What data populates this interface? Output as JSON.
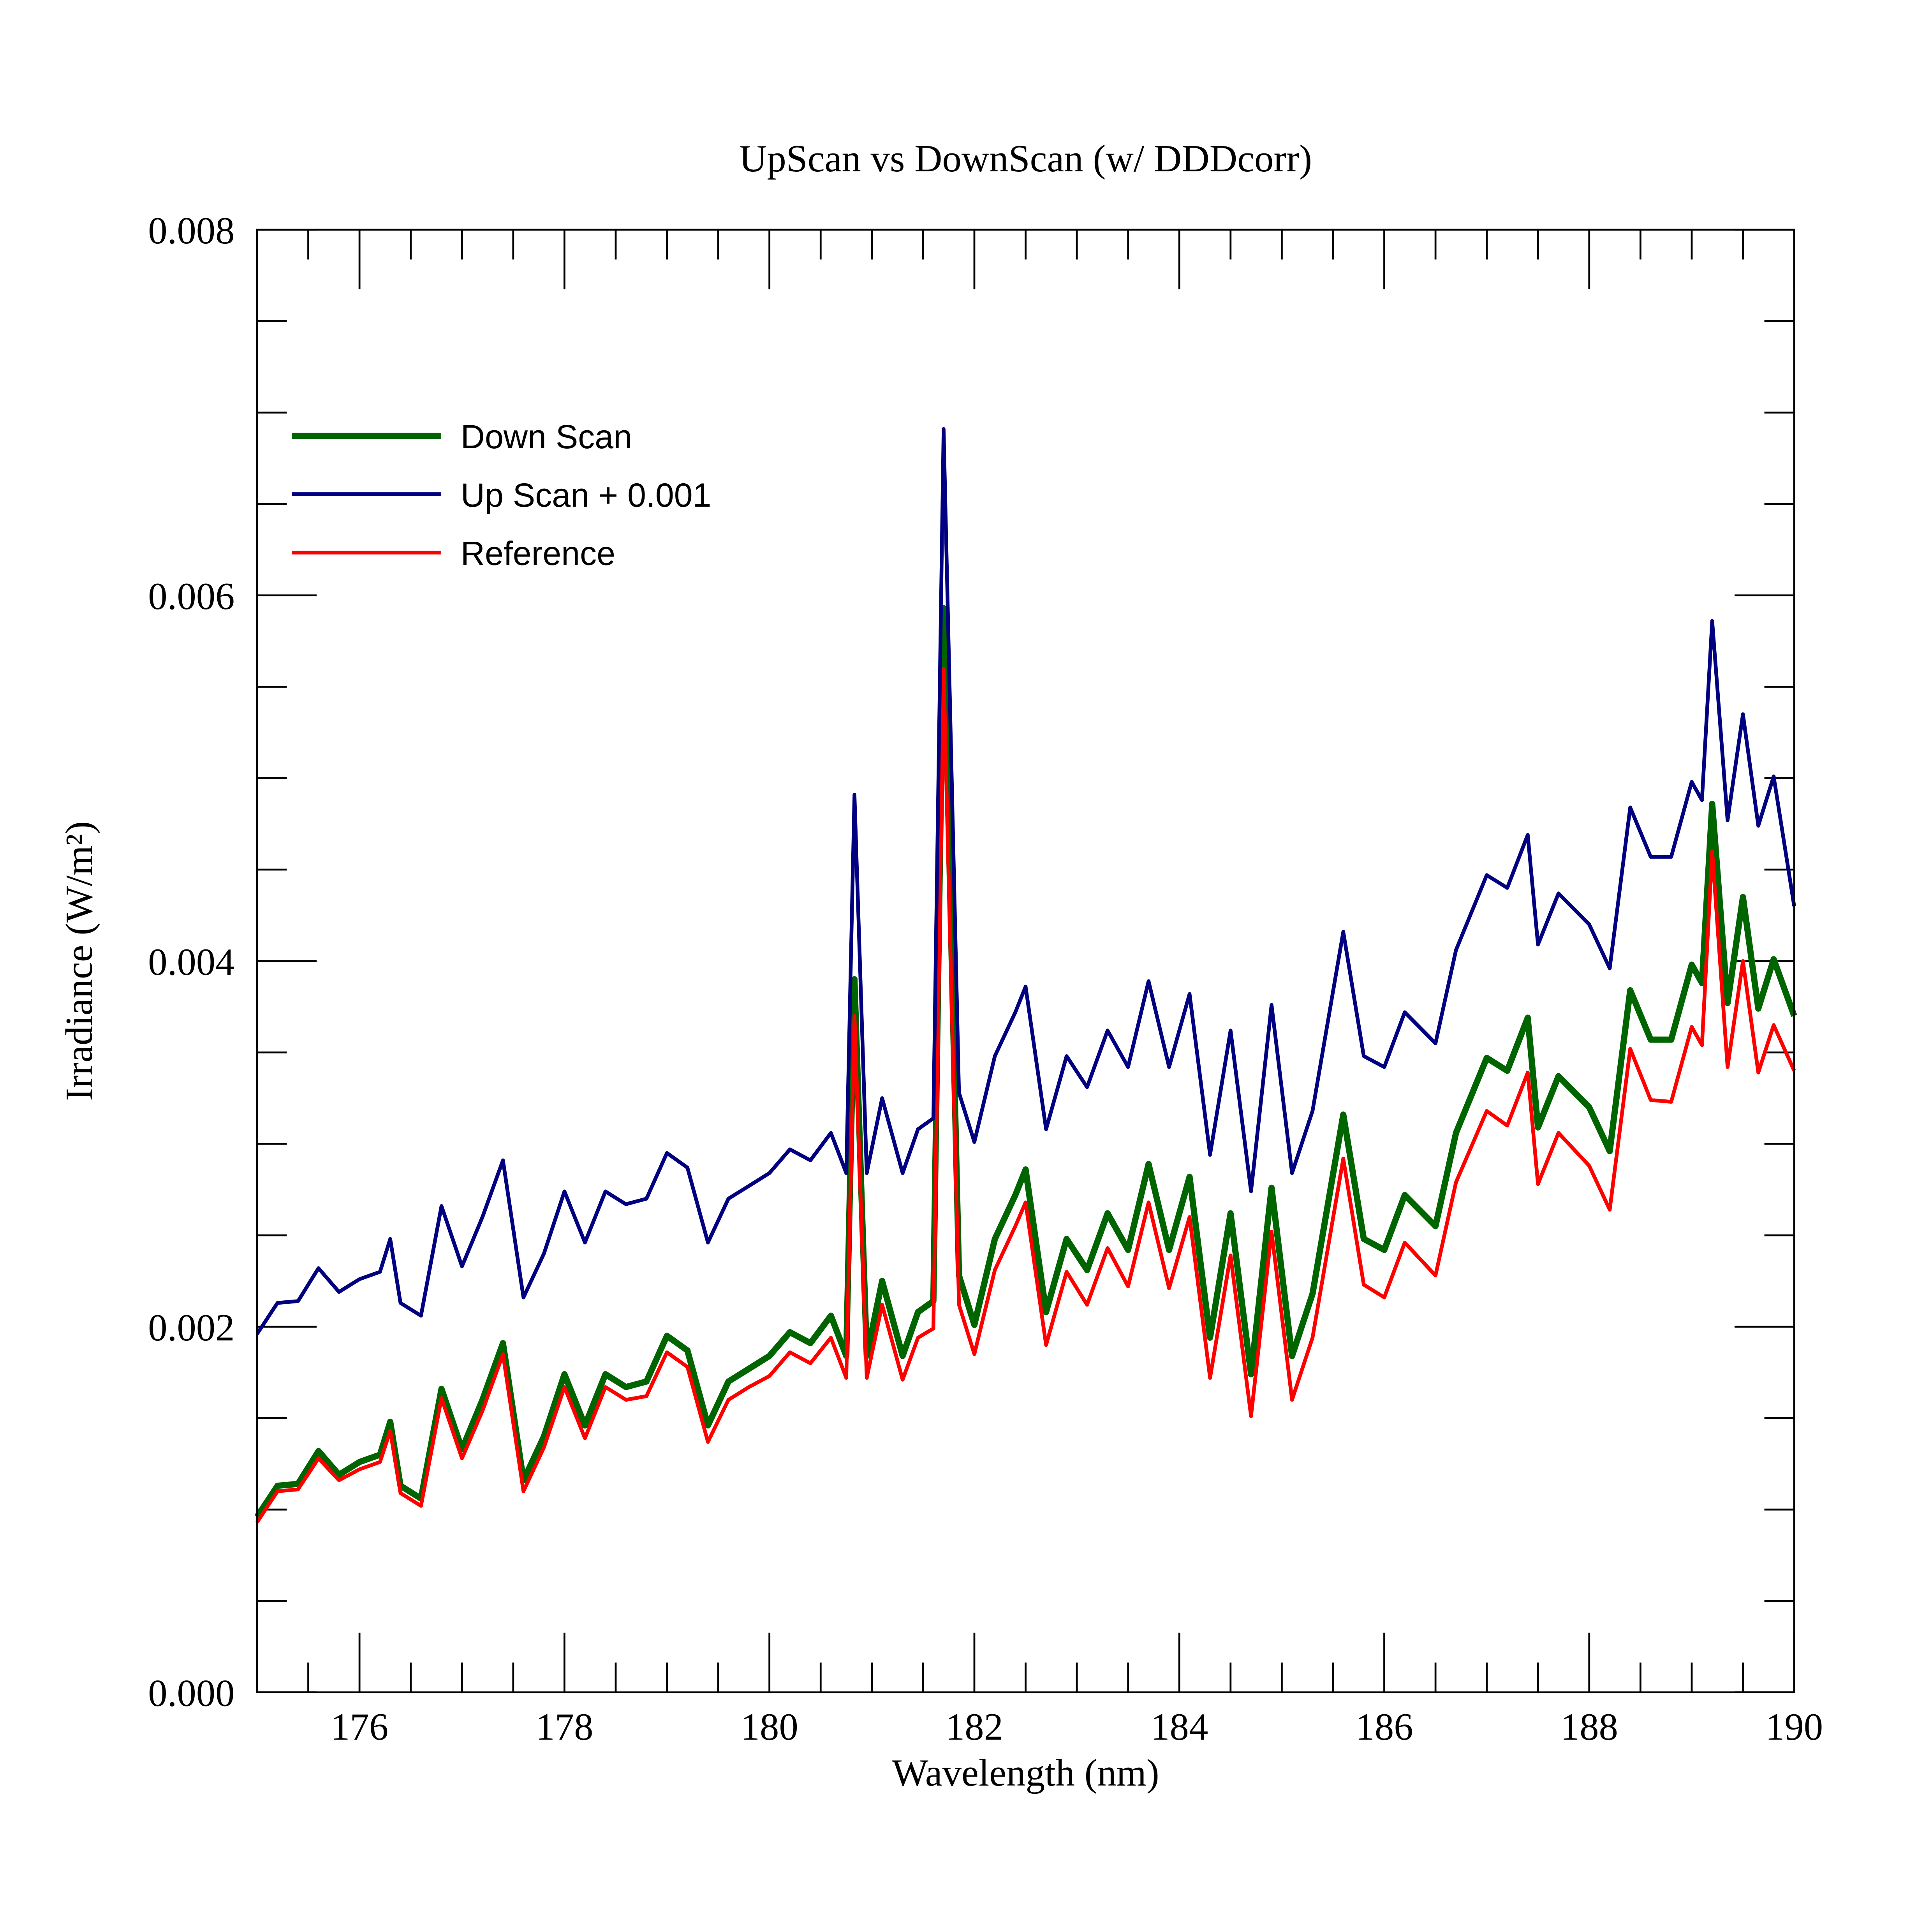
{
  "chart_data": {
    "type": "line",
    "title": "UpScan vs DownScan (w/ DDDcorr)",
    "xlabel": "Wavelength (nm)",
    "ylabel": "Irradiance (W/m²)",
    "x": [
      175,
      175.2,
      175.4,
      175.6,
      175.8,
      176,
      176.2,
      176.3,
      176.4,
      176.6,
      176.8,
      177,
      177.2,
      177.4,
      177.6,
      177.8,
      178,
      178.2,
      178.4,
      178.6,
      178.8,
      179,
      179.2,
      179.4,
      179.6,
      179.8,
      180,
      180.2,
      180.4,
      180.6,
      180.75,
      180.83,
      180.95,
      181.1,
      181.3,
      181.45,
      181.6,
      181.7,
      181.85,
      182,
      182.2,
      182.4,
      182.5,
      182.7,
      182.9,
      183.1,
      183.3,
      183.5,
      183.7,
      183.9,
      184.1,
      184.3,
      184.5,
      184.7,
      184.9,
      185.1,
      185.3,
      185.6,
      185.8,
      186,
      186.2,
      186.5,
      186.7,
      187,
      187.2,
      187.4,
      187.5,
      187.7,
      188,
      188.2,
      188.4,
      188.6,
      188.8,
      189,
      189.1,
      189.2,
      189.35,
      189.5,
      189.65,
      189.8,
      190
    ],
    "series": [
      {
        "name": "Down Scan",
        "color": "#006400",
        "width": 5,
        "values": [
          0.00096,
          0.00113,
          0.00114,
          0.00132,
          0.00119,
          0.00126,
          0.0013,
          0.00148,
          0.00113,
          0.00106,
          0.00166,
          0.00133,
          0.0016,
          0.00191,
          0.00116,
          0.0014,
          0.00174,
          0.00146,
          0.00174,
          0.00167,
          0.0017,
          0.00195,
          0.00187,
          0.00146,
          0.0017,
          0.00177,
          0.00184,
          0.00197,
          0.00191,
          0.00206,
          0.00184,
          0.0039,
          0.00184,
          0.00225,
          0.00184,
          0.00208,
          0.00214,
          0.00593,
          0.00228,
          0.00201,
          0.00248,
          0.00272,
          0.00286,
          0.00208,
          0.00248,
          0.00231,
          0.00262,
          0.00242,
          0.00289,
          0.00242,
          0.00282,
          0.00194,
          0.00262,
          0.00174,
          0.00276,
          0.00184,
          0.00218,
          0.00316,
          0.00248,
          0.00242,
          0.00272,
          0.00255,
          0.00306,
          0.00347,
          0.0034,
          0.00369,
          0.00309,
          0.00337,
          0.0032,
          0.00296,
          0.00384,
          0.00357,
          0.00357,
          0.00398,
          0.00388,
          0.00486,
          0.00377,
          0.00435,
          0.00374,
          0.00401,
          0.0037
        ]
      },
      {
        "name": "Reference",
        "color": "#ff0000",
        "width": 3,
        "values": [
          0.00093,
          0.0011,
          0.00111,
          0.00128,
          0.00116,
          0.00122,
          0.00126,
          0.00143,
          0.00109,
          0.00102,
          0.00161,
          0.00128,
          0.00154,
          0.00185,
          0.0011,
          0.00134,
          0.00167,
          0.00139,
          0.00167,
          0.0016,
          0.00162,
          0.00186,
          0.00178,
          0.00137,
          0.0016,
          0.00167,
          0.00173,
          0.00186,
          0.0018,
          0.00194,
          0.00172,
          0.0037,
          0.00172,
          0.00212,
          0.00171,
          0.00194,
          0.00199,
          0.0056,
          0.00212,
          0.00185,
          0.00231,
          0.00255,
          0.00268,
          0.0019,
          0.0023,
          0.00212,
          0.00243,
          0.00222,
          0.00268,
          0.00221,
          0.0026,
          0.00172,
          0.00239,
          0.00151,
          0.00252,
          0.0016,
          0.00194,
          0.00292,
          0.00223,
          0.00216,
          0.00246,
          0.00228,
          0.00279,
          0.00318,
          0.0031,
          0.00339,
          0.00278,
          0.00306,
          0.00288,
          0.00264,
          0.00352,
          0.00324,
          0.00323,
          0.00364,
          0.00354,
          0.0046,
          0.00342,
          0.004,
          0.00339,
          0.00365,
          0.0034
        ]
      },
      {
        "name": "Up Scan + 0.001",
        "color": "#000080",
        "width": 3,
        "values": [
          0.00196,
          0.00213,
          0.00214,
          0.00232,
          0.00219,
          0.00226,
          0.0023,
          0.00248,
          0.00213,
          0.00206,
          0.00266,
          0.00233,
          0.0026,
          0.00291,
          0.00216,
          0.0024,
          0.00274,
          0.00246,
          0.00274,
          0.00267,
          0.0027,
          0.00295,
          0.00287,
          0.00246,
          0.0027,
          0.00277,
          0.00284,
          0.00297,
          0.00291,
          0.00306,
          0.00284,
          0.00491,
          0.00284,
          0.00325,
          0.00284,
          0.00308,
          0.00314,
          0.00691,
          0.00328,
          0.00301,
          0.00348,
          0.00372,
          0.00386,
          0.00308,
          0.00348,
          0.00331,
          0.00362,
          0.00342,
          0.00389,
          0.00342,
          0.00382,
          0.00294,
          0.00362,
          0.00274,
          0.00376,
          0.00284,
          0.00318,
          0.00416,
          0.00348,
          0.00342,
          0.00372,
          0.00355,
          0.00406,
          0.00447,
          0.0044,
          0.00469,
          0.00409,
          0.00437,
          0.0042,
          0.00396,
          0.00484,
          0.00457,
          0.00457,
          0.00498,
          0.00488,
          0.00586,
          0.00477,
          0.00535,
          0.00474,
          0.00501,
          0.0043
        ]
      }
    ],
    "legend_order": [
      0,
      2,
      1
    ],
    "xlim": [
      175,
      190
    ],
    "ylim": [
      0,
      0.008
    ],
    "xticks": [
      176,
      178,
      180,
      182,
      184,
      186,
      188,
      190
    ],
    "xminor": [
      175.5,
      176.5,
      177,
      177.5,
      178.5,
      179,
      179.5,
      180.5,
      181,
      181.5,
      182.5,
      183,
      183.5,
      184.5,
      185,
      185.5,
      186.5,
      187,
      187.5,
      188.5,
      189,
      189.5
    ],
    "yticks": [
      {
        "value": 0,
        "label": "0.000"
      },
      {
        "value": 0.002,
        "label": "0.002"
      },
      {
        "value": 0.004,
        "label": "0.004"
      },
      {
        "value": 0.006,
        "label": "0.006"
      },
      {
        "value": 0.008,
        "label": "0.008"
      }
    ],
    "yminor": [
      0.0005,
      0.001,
      0.0015,
      0.0025,
      0.003,
      0.0035,
      0.0045,
      0.005,
      0.0055,
      0.0065,
      0.007,
      0.0075
    ],
    "legend": "upper left",
    "grid": false
  }
}
